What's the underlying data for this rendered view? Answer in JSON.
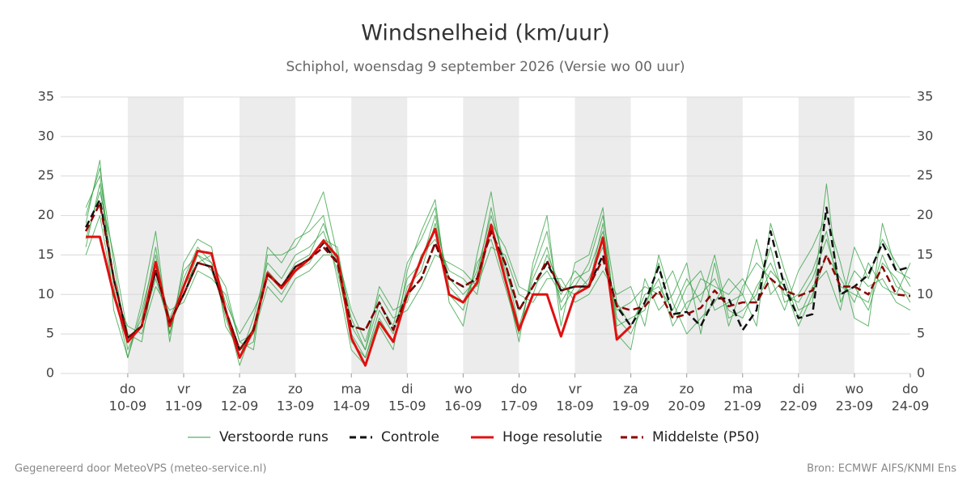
{
  "chart_data": {
    "type": "line",
    "title": "Windsnelheid (km/uur)",
    "subtitle": "Schiphol, woensdag  9 september 2026 (Versie wo 00 uur)",
    "footer_left": "Gegenereerd door MeteoVPS (meteo-service.nl)",
    "footer_right": "Bron: ECMWF AIFS/KNMI Ens",
    "x": [
      9.25,
      9.5,
      9.75,
      10,
      10.25,
      10.5,
      10.75,
      11,
      11.25,
      11.5,
      11.75,
      12,
      12.25,
      12.5,
      12.75,
      13,
      13.25,
      13.5,
      13.75,
      14,
      14.25,
      14.5,
      14.75,
      15,
      15.25,
      15.5,
      15.75,
      16,
      16.25,
      16.5,
      16.75,
      17,
      17.25,
      17.5,
      17.75,
      18,
      18.25,
      18.5,
      18.75,
      19,
      19.25,
      19.5,
      19.75,
      20,
      20.25,
      20.5,
      20.75,
      21,
      21.25,
      21.5,
      21.75,
      22,
      22.25,
      22.5,
      22.75,
      23,
      23.25,
      23.5,
      23.75,
      24
    ],
    "xlim": [
      8.8,
      24
    ],
    "xticks": [
      {
        "value": 10,
        "label": "10-09"
      },
      {
        "value": 11,
        "label": "11-09"
      },
      {
        "value": 12,
        "label": "12-09"
      },
      {
        "value": 13,
        "label": "13-09"
      },
      {
        "value": 14,
        "label": "14-09"
      },
      {
        "value": 15,
        "label": "15-09"
      },
      {
        "value": 16,
        "label": "16-09"
      },
      {
        "value": 17,
        "label": "17-09"
      },
      {
        "value": 18,
        "label": "18-09"
      },
      {
        "value": 19,
        "label": "19-09"
      },
      {
        "value": 20,
        "label": "20-09"
      },
      {
        "value": 21,
        "label": "21-09"
      },
      {
        "value": 22,
        "label": "22-09"
      },
      {
        "value": 23,
        "label": "23-09"
      },
      {
        "value": 24,
        "label": "24-09"
      }
    ],
    "xtick_weekdays": [
      "do",
      "vr",
      "za",
      "zo",
      "ma",
      "di",
      "wo",
      "do",
      "vr",
      "za",
      "zo",
      "ma",
      "di",
      "wo",
      "do"
    ],
    "ylim": [
      0,
      35
    ],
    "yticks": [
      0,
      5,
      10,
      15,
      20,
      25,
      30,
      35
    ],
    "grid": true,
    "ensemble": {
      "name": "Verstoorde runs",
      "color": "#2e9e3e",
      "members": [
        [
          20,
          26,
          14,
          3,
          7,
          16,
          5,
          12,
          16,
          14,
          7,
          2,
          7,
          14,
          12,
          15,
          16,
          18,
          13,
          5,
          2,
          8,
          5,
          12,
          14,
          20,
          11,
          9,
          13,
          20,
          14,
          6,
          12,
          16,
          9,
          12,
          13,
          18,
          7,
          5,
          9,
          12,
          6,
          9,
          10,
          12,
          8,
          7,
          11,
          14,
          10,
          9,
          12,
          17,
          11,
          10,
          9,
          15,
          11,
          10
        ],
        [
          15,
          20,
          10,
          6,
          5,
          11,
          8,
          9,
          13,
          12,
          10,
          4,
          5,
          11,
          9,
          12,
          13,
          15,
          15,
          8,
          4,
          10,
          7,
          8,
          11,
          15,
          14,
          13,
          11,
          16,
          15,
          10,
          9,
          12,
          12,
          9,
          10,
          13,
          10,
          11,
          6,
          15,
          9,
          5,
          7,
          9,
          12,
          10,
          6,
          19,
          13,
          8,
          9,
          24,
          9,
          13,
          11,
          12,
          9,
          8
        ],
        [
          19,
          27,
          8,
          2,
          9,
          18,
          4,
          14,
          17,
          16,
          6,
          3,
          4,
          16,
          14,
          17,
          18,
          20,
          12,
          3,
          1,
          6,
          3,
          13,
          18,
          22,
          9,
          6,
          15,
          23,
          12,
          4,
          14,
          20,
          6,
          14,
          15,
          21,
          5,
          3,
          12,
          8,
          10,
          14,
          5,
          14,
          6,
          11,
          14,
          12,
          8,
          13,
          16,
          20,
          14,
          7,
          6,
          19,
          13,
          12
        ],
        [
          17,
          23,
          15,
          5,
          4,
          14,
          7,
          11,
          14,
          15,
          9,
          5,
          8,
          12,
          10,
          13,
          14,
          17,
          16,
          6,
          3,
          11,
          8,
          9,
          15,
          17,
          13,
          12,
          10,
          19,
          16,
          11,
          10,
          15,
          11,
          10,
          12,
          16,
          8,
          9,
          11,
          10,
          13,
          8,
          12,
          11,
          10,
          12,
          9,
          13,
          11,
          6,
          10,
          15,
          12,
          9,
          14,
          11,
          10,
          14
        ],
        [
          21,
          25,
          12,
          4,
          6,
          12,
          6,
          10,
          15,
          13,
          8,
          1,
          6,
          13,
          11,
          14,
          15,
          19,
          14,
          4,
          2,
          7,
          4,
          11,
          13,
          19,
          12,
          10,
          12,
          21,
          13,
          8,
          11,
          13,
          10,
          13,
          11,
          19,
          6,
          7,
          8,
          14,
          7,
          11,
          13,
          8,
          9,
          10,
          17,
          10,
          12,
          7,
          11,
          13,
          8,
          16,
          12,
          17,
          14,
          11
        ],
        [
          16,
          24,
          11,
          2,
          8,
          15,
          5,
          13,
          15,
          14,
          11,
          4,
          3,
          15,
          15,
          16,
          19,
          23,
          15,
          7,
          3,
          9,
          6,
          14,
          17,
          21,
          10,
          8,
          14,
          17,
          11,
          5,
          13,
          18,
          8,
          11,
          14,
          20,
          9,
          6,
          10,
          11,
          8,
          12,
          9,
          15,
          7,
          8,
          10,
          16,
          9,
          10,
          13,
          18,
          10,
          11,
          8,
          14,
          12,
          9
        ]
      ]
    },
    "series": [
      {
        "name": "Controle",
        "color": "#111111",
        "dash": true,
        "values": [
          18.5,
          22,
          12,
          4.5,
          6,
          13,
          6.5,
          10,
          14,
          13.5,
          8,
          3,
          5.5,
          12.5,
          11,
          13.5,
          14.5,
          16.5,
          14,
          6,
          5.5,
          9,
          5.5,
          10,
          12,
          16.5,
          12,
          11,
          12,
          18,
          14,
          8,
          11,
          14,
          10.5,
          11,
          11,
          15,
          8.5,
          6,
          9,
          13.5,
          7.5,
          7.8,
          6,
          9.5,
          9.5,
          5.5,
          8,
          18,
          11,
          7,
          7.5,
          21,
          10,
          11,
          12.5,
          16.5,
          13,
          13.5
        ]
      },
      {
        "name": "Hoge resolutie",
        "color": "#e01010",
        "dash": false,
        "values": [
          17.3,
          17.3,
          10,
          4,
          6,
          14.1,
          6,
          11,
          15.5,
          15.2,
          8,
          2,
          5.5,
          12.7,
          10.8,
          13,
          14.5,
          16.8,
          14.8,
          4.5,
          1,
          6.5,
          4,
          10,
          14.5,
          18.3,
          10,
          9,
          11.5,
          18.8,
          12,
          5.5,
          10,
          10,
          4.7,
          10,
          11,
          17.2,
          4.3,
          6,
          null,
          null,
          null,
          null,
          null,
          null,
          null,
          null,
          null,
          null,
          null,
          null,
          null,
          null,
          null,
          null,
          null,
          null,
          null,
          null
        ]
      },
      {
        "name": "Middelste (P50)",
        "color": "#8b0000",
        "dash": true,
        "values": [
          18,
          21.5,
          12,
          4.5,
          6,
          13,
          6.5,
          10,
          14,
          13.5,
          8,
          3,
          5.5,
          12.5,
          11,
          13.5,
          14.5,
          16,
          14,
          6,
          5.5,
          9,
          5.5,
          10,
          12,
          16.5,
          12,
          11,
          12,
          18,
          14,
          8,
          11,
          14.3,
          10.5,
          11,
          11,
          14.5,
          8.5,
          8,
          8.5,
          10.5,
          7,
          7.5,
          8.3,
          10.5,
          8.5,
          9,
          9,
          12,
          10.5,
          9.8,
          10.5,
          15,
          11,
          11,
          10,
          13.5,
          10,
          9.8
        ]
      }
    ]
  }
}
